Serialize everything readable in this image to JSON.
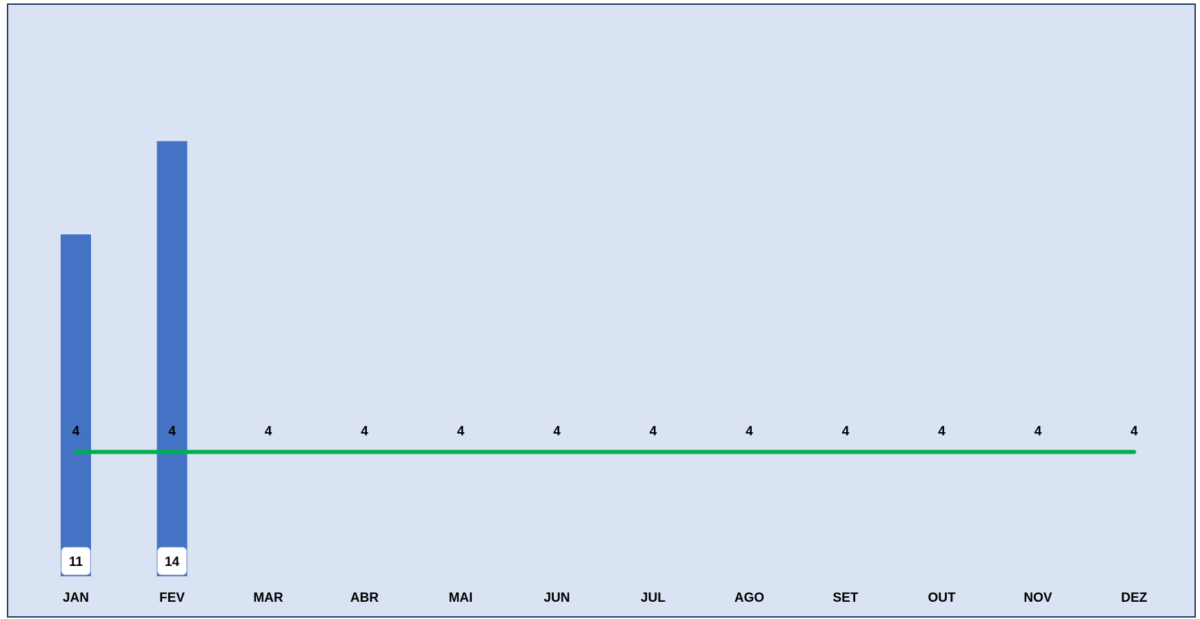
{
  "chart_data": {
    "type": "bar",
    "categories": [
      "JAN",
      "FEV",
      "MAR",
      "ABR",
      "MAI",
      "JUN",
      "JUL",
      "AGO",
      "SET",
      "OUT",
      "NOV",
      "DEZ"
    ],
    "series": [
      {
        "type": "bar",
        "values": [
          11,
          14,
          null,
          null,
          null,
          null,
          null,
          null,
          null,
          null,
          null,
          null
        ],
        "color": "#4472c4"
      },
      {
        "type": "line",
        "values": [
          4,
          4,
          4,
          4,
          4,
          4,
          4,
          4,
          4,
          4,
          4,
          4
        ],
        "color": "#00b050"
      }
    ],
    "ylim": [
      0,
      17.5
    ],
    "grid": false,
    "legend": "none",
    "colors": {
      "background": "#dae3f3",
      "border": "#1f3864",
      "label_box": "#ffffff",
      "axis": "#d9d9d9"
    }
  }
}
